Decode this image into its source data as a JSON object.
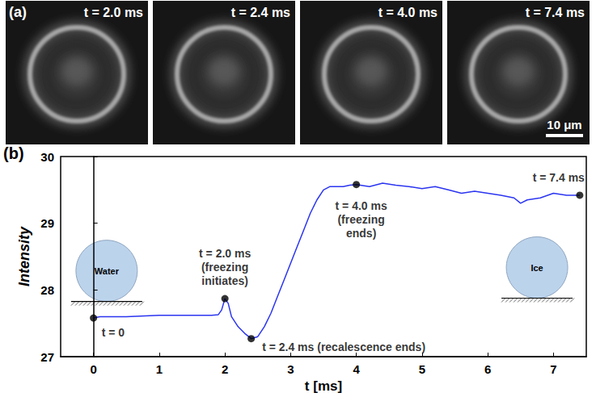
{
  "panel_a": {
    "label": "(a)",
    "frames": [
      "t = 2.0 ms",
      "t = 2.4 ms",
      "t = 4.0 ms",
      "t = 7.4 ms"
    ],
    "scale_bar": "10 μm"
  },
  "chart_data": {
    "type": "line",
    "panel_label": "(b)",
    "x_label": "t [ms]",
    "y_label": "Intensity",
    "xlim": [
      -0.5,
      7.5
    ],
    "xticks": [
      0,
      1,
      2,
      3,
      4,
      5,
      6,
      7
    ],
    "ylim": [
      27,
      30
    ],
    "yticks": [
      27,
      28,
      29,
      30
    ],
    "grid": false,
    "x": [
      0,
      0.1,
      0.2,
      0.5,
      1.0,
      1.5,
      1.8,
      1.9,
      1.95,
      2.0,
      2.05,
      2.1,
      2.2,
      2.3,
      2.4,
      2.5,
      2.6,
      2.7,
      2.8,
      2.9,
      3.0,
      3.1,
      3.2,
      3.3,
      3.4,
      3.5,
      3.6,
      3.7,
      3.8,
      3.9,
      4.0,
      4.2,
      4.4,
      4.6,
      4.8,
      5.0,
      5.2,
      5.4,
      5.6,
      5.8,
      6.0,
      6.2,
      6.4,
      6.5,
      6.6,
      6.8,
      7.0,
      7.2,
      7.4
    ],
    "values": [
      27.58,
      27.6,
      27.6,
      27.6,
      27.62,
      27.62,
      27.62,
      27.63,
      27.7,
      27.87,
      27.8,
      27.6,
      27.45,
      27.35,
      27.27,
      27.3,
      27.45,
      27.65,
      27.9,
      28.15,
      28.4,
      28.65,
      28.9,
      29.15,
      29.35,
      29.5,
      29.55,
      29.55,
      29.55,
      29.57,
      29.58,
      29.55,
      29.6,
      29.57,
      29.55,
      29.52,
      29.55,
      29.5,
      29.45,
      29.48,
      29.45,
      29.42,
      29.38,
      29.3,
      29.35,
      29.38,
      29.45,
      29.42,
      29.42
    ],
    "color": "#2b35f0",
    "annotations": [
      {
        "x": 0,
        "y": 27.58,
        "label": [
          "t = 0"
        ]
      },
      {
        "x": 2.0,
        "y": 27.87,
        "label": [
          "t = 2.0 ms",
          "(freezing",
          "initiates)"
        ]
      },
      {
        "x": 2.4,
        "y": 27.27,
        "label": [
          "t = 2.4 ms (recalescence ends)"
        ]
      },
      {
        "x": 4.0,
        "y": 29.58,
        "label": [
          "t = 4.0 ms",
          "(freezing",
          "ends)"
        ]
      },
      {
        "x": 7.4,
        "y": 29.42,
        "label": [
          "t = 7.4 ms"
        ]
      }
    ],
    "insets": [
      "Water",
      "Ice"
    ]
  }
}
